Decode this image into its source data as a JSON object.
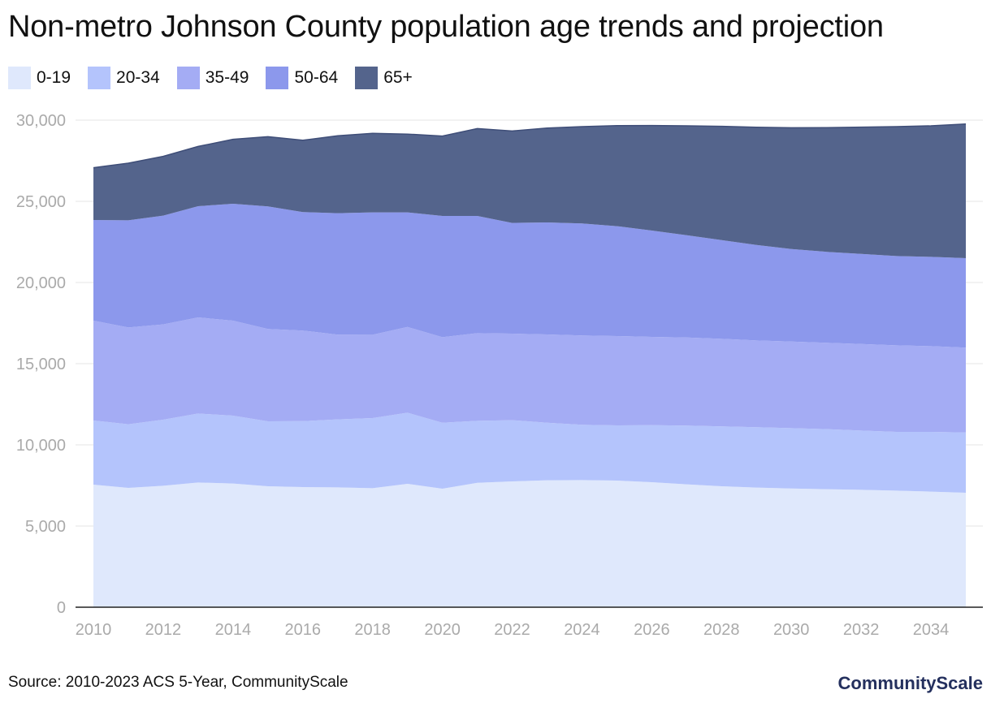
{
  "title": "Non-metro Johnson County population age trends and projection",
  "source": "Source: 2010-2023 ACS 5-Year, CommunityScale",
  "brand": "CommunityScale",
  "chart_data": {
    "type": "area",
    "stacked": true,
    "title": "Non-metro Johnson County population age trends and projection",
    "x": [
      2010,
      2011,
      2012,
      2013,
      2014,
      2015,
      2016,
      2017,
      2018,
      2019,
      2020,
      2021,
      2022,
      2023,
      2024,
      2025,
      2026,
      2027,
      2028,
      2029,
      2030,
      2031,
      2032,
      2033,
      2034,
      2035
    ],
    "x_tick_labels": [
      "2010",
      "2012",
      "2014",
      "2016",
      "2018",
      "2020",
      "2022",
      "2024",
      "2026",
      "2028",
      "2030",
      "2032",
      "2034"
    ],
    "y_tick_labels": [
      "0",
      "5,000",
      "10,000",
      "15,000",
      "20,000",
      "25,000",
      "30,000"
    ],
    "ylim": [
      0,
      30000
    ],
    "grid": true,
    "legend_position": "top-left",
    "series": [
      {
        "name": "0-19",
        "color": "#dfe8fc",
        "values": [
          7550,
          7350,
          7480,
          7680,
          7620,
          7450,
          7400,
          7380,
          7330,
          7600,
          7300,
          7660,
          7750,
          7820,
          7830,
          7800,
          7700,
          7570,
          7450,
          7370,
          7310,
          7270,
          7230,
          7180,
          7120,
          7050
        ]
      },
      {
        "name": "20-34",
        "color": "#b4c4fc",
        "values": [
          3950,
          3920,
          4070,
          4250,
          4180,
          4000,
          4060,
          4190,
          4320,
          4380,
          4060,
          3820,
          3770,
          3540,
          3410,
          3400,
          3510,
          3620,
          3690,
          3720,
          3720,
          3700,
          3650,
          3620,
          3680,
          3710
        ]
      },
      {
        "name": "35-49",
        "color": "#a4acf4",
        "values": [
          6150,
          5960,
          5870,
          5920,
          5850,
          5690,
          5580,
          5220,
          5130,
          5280,
          5270,
          5400,
          5330,
          5440,
          5500,
          5500,
          5440,
          5420,
          5390,
          5340,
          5330,
          5320,
          5330,
          5330,
          5280,
          5230
        ]
      },
      {
        "name": "50-64",
        "color": "#8c98ec",
        "values": [
          6200,
          6600,
          6700,
          6850,
          7200,
          7550,
          7300,
          7480,
          7540,
          7060,
          7470,
          7220,
          6820,
          6900,
          6900,
          6770,
          6550,
          6300,
          6080,
          5880,
          5700,
          5600,
          5550,
          5500,
          5500,
          5510
        ]
      },
      {
        "name": "65+",
        "color": "#54648c",
        "values": [
          3220,
          3520,
          3650,
          3680,
          3970,
          4290,
          4420,
          4770,
          4870,
          4820,
          4920,
          5380,
          5660,
          5810,
          5960,
          6190,
          6470,
          6740,
          7010,
          7250,
          7470,
          7650,
          7810,
          7970,
          8070,
          8260
        ]
      }
    ]
  }
}
